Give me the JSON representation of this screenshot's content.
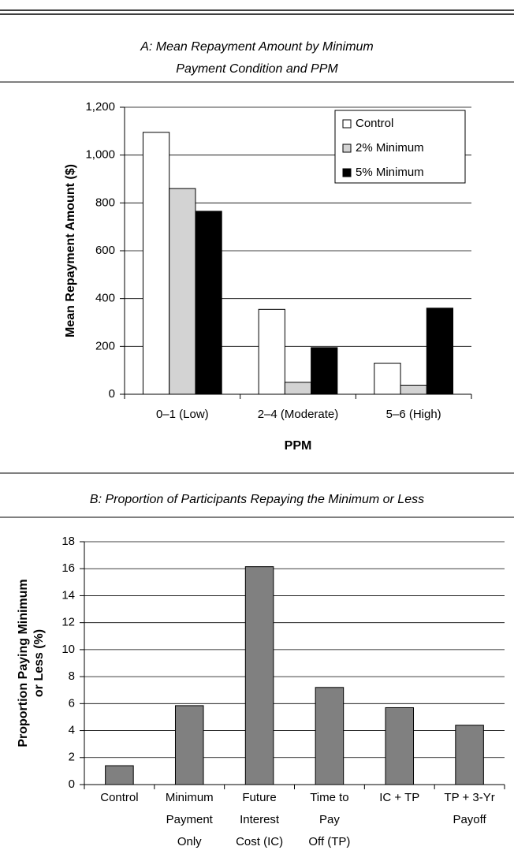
{
  "chart_data": [
    {
      "type": "bar",
      "title": [
        "A: Mean Repayment Amount by Minimum",
        "Payment Condition and PPM"
      ],
      "x_label": "PPM",
      "y_label": [
        "Mean Repayment Amount ($)"
      ],
      "categories": [
        [
          "0–1 (Low)"
        ],
        [
          "2–4 (Moderate)"
        ],
        [
          "5–6 (High)"
        ]
      ],
      "series": [
        {
          "name": "Control",
          "color": "#ffffff",
          "values": [
            1095,
            355,
            130
          ]
        },
        {
          "name": "2% Minimum",
          "color": "#d3d3d3",
          "values": [
            860,
            50,
            38
          ]
        },
        {
          "name": "5% Minimum",
          "color": "#000000",
          "values": [
            765,
            195,
            360
          ]
        }
      ],
      "ylim": [
        0,
        1200
      ],
      "yticks": [
        0,
        200,
        400,
        600,
        800,
        {
          "value": 1000,
          "label": "1,000"
        },
        {
          "value": 1200,
          "label": "1,200"
        }
      ],
      "grid": true,
      "legend": "upper right"
    },
    {
      "type": "bar",
      "title": [
        "B: Proportion of Participants Repaying the Minimum or Less"
      ],
      "y_label": [
        "Proportion Paying Minimum",
        "or Less (%)"
      ],
      "categories": [
        [
          "Control"
        ],
        [
          "Minimum",
          "Payment",
          "Only"
        ],
        [
          "Future",
          "Interest",
          "Cost (IC)"
        ],
        [
          "Time to",
          "Pay",
          "Off (TP)"
        ],
        [
          "IC + TP"
        ],
        [
          "TP + 3-Yr",
          "Payoff"
        ]
      ],
      "values": [
        1.4,
        5.85,
        16.15,
        7.2,
        5.7,
        4.4
      ],
      "color": "#808080",
      "ylim": [
        0,
        18
      ],
      "yticks": [
        0,
        2,
        4,
        6,
        8,
        10,
        12,
        14,
        16,
        18
      ],
      "grid": true
    }
  ]
}
